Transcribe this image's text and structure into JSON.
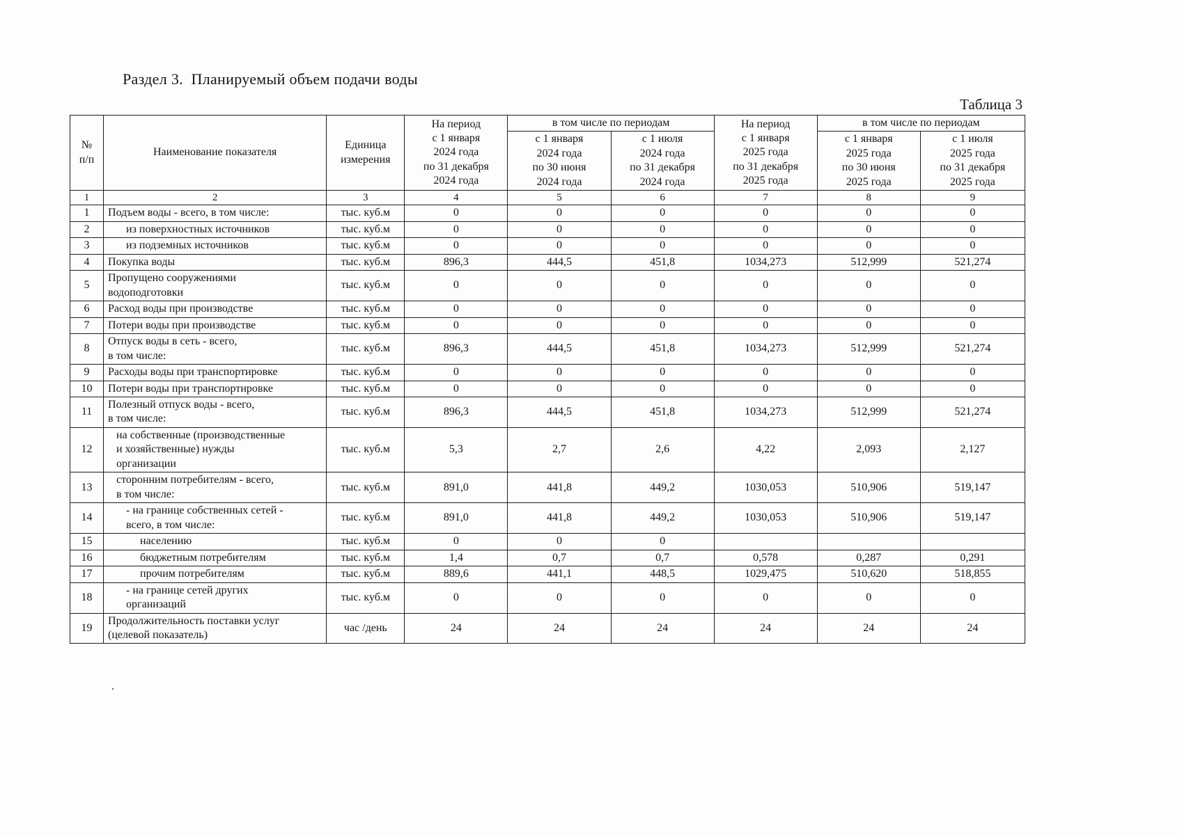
{
  "document": {
    "section_title": "Раздел 3.  Планируемый объем подачи воды",
    "table_label": "Таблица 3",
    "stray_mark": "."
  },
  "table": {
    "header": {
      "num": "№\nп/п",
      "indicator": "Наименование показателя",
      "unit": "Единица\nизмерения",
      "period_2024": "На период\nс 1 января\n2024 года\nпо 31 декабря\n2024 года",
      "including_2024": "в том числе по периодам",
      "h1_2024": "с 1 января\n2024 года\nпо 30 июня\n2024 года",
      "h2_2024": "с 1 июля\n2024 года\nпо 31 декабря\n2024 года",
      "period_2025": "На период\nс 1 января\n2025 года\nпо 31 декабря\n2025 года",
      "including_2025": "в том числе по периодам",
      "h1_2025": "с 1 января\n2025 года\nпо 30 июня\n2025 года",
      "h2_2025": "с 1 июля\n2025 года\nпо 31 декабря\n2025 года"
    },
    "column_numbers": [
      "1",
      "2",
      "3",
      "4",
      "5",
      "6",
      "7",
      "8",
      "9"
    ],
    "rows": [
      {
        "num": "1",
        "name": "Подъем воды - всего, в том числе:",
        "unit": "тыс. куб.м",
        "indent": 0,
        "values": [
          "0",
          "0",
          "0",
          "0",
          "0",
          "0"
        ]
      },
      {
        "num": "2",
        "name": "из поверхностных источников",
        "unit": "тыс. куб.м",
        "indent": 2,
        "values": [
          "0",
          "0",
          "0",
          "0",
          "0",
          "0"
        ]
      },
      {
        "num": "3",
        "name": "из подземных источников",
        "unit": "тыс. куб.м",
        "indent": 2,
        "values": [
          "0",
          "0",
          "0",
          "0",
          "0",
          "0"
        ]
      },
      {
        "num": "4",
        "name": "Покупка воды",
        "unit": "тыс. куб.м",
        "indent": 0,
        "values": [
          "896,3",
          "444,5",
          "451,8",
          "1034,273",
          "512,999",
          "521,274"
        ]
      },
      {
        "num": "5",
        "name": "Пропущено сооружениями\nводоподготовки",
        "unit": "тыс. куб.м",
        "indent": 0,
        "values": [
          "0",
          "0",
          "0",
          "0",
          "0",
          "0"
        ]
      },
      {
        "num": "6",
        "name": "Расход воды при производстве",
        "unit": "тыс. куб.м",
        "indent": 0,
        "values": [
          "0",
          "0",
          "0",
          "0",
          "0",
          "0"
        ]
      },
      {
        "num": "7",
        "name": "Потери воды при производстве",
        "unit": "тыс. куб.м",
        "indent": 0,
        "values": [
          "0",
          "0",
          "0",
          "0",
          "0",
          "0"
        ]
      },
      {
        "num": "8",
        "name": "Отпуск воды в сеть - всего,\nв том числе:",
        "unit": "тыс. куб.м",
        "indent": 0,
        "values": [
          "896,3",
          "444,5",
          "451,8",
          "1034,273",
          "512,999",
          "521,274"
        ]
      },
      {
        "num": "9",
        "name": "Расходы воды при транспортировке",
        "unit": "тыс. куб.м",
        "indent": 0,
        "values": [
          "0",
          "0",
          "0",
          "0",
          "0",
          "0"
        ]
      },
      {
        "num": "10",
        "name": "Потери воды при транспортировке",
        "unit": "тыс. куб.м",
        "indent": 0,
        "values": [
          "0",
          "0",
          "0",
          "0",
          "0",
          "0"
        ]
      },
      {
        "num": "11",
        "name": "Полезный отпуск воды - всего,\nв том числе:",
        "unit": "тыс. куб.м",
        "indent": 0,
        "values": [
          "896,3",
          "444,5",
          "451,8",
          "1034,273",
          "512,999",
          "521,274"
        ]
      },
      {
        "num": "12",
        "name": "на собственные (производственные\nи хозяйственные) нужды\nорганизации",
        "unit": "тыс. куб.м",
        "indent": 1,
        "values": [
          "5,3",
          "2,7",
          "2,6",
          "4,22",
          "2,093",
          "2,127"
        ]
      },
      {
        "num": "13",
        "name": "сторонним потребителям - всего,\nв том числе:",
        "unit": "тыс. куб.м",
        "indent": 1,
        "values": [
          "891,0",
          "441,8",
          "449,2",
          "1030,053",
          "510,906",
          "519,147"
        ]
      },
      {
        "num": "14",
        "name": "- на границе собственных сетей -\nвсего, в том числе:",
        "unit": "тыс. куб.м",
        "indent": 2,
        "values": [
          "891,0",
          "441,8",
          "449,2",
          "1030,053",
          "510,906",
          "519,147"
        ]
      },
      {
        "num": "15",
        "name": "населению",
        "unit": "тыс. куб.м",
        "indent": 3,
        "values": [
          "0",
          "0",
          "0",
          "",
          "",
          ""
        ]
      },
      {
        "num": "16",
        "name": "бюджетным потребителям",
        "unit": "тыс. куб.м",
        "indent": 3,
        "values": [
          "1,4",
          "0,7",
          "0,7",
          "0,578",
          "0,287",
          "0,291"
        ]
      },
      {
        "num": "17",
        "name": "прочим потребителям",
        "unit": "тыс. куб.м",
        "indent": 3,
        "values": [
          "889,6",
          "441,1",
          "448,5",
          "1029,475",
          "510,620",
          "518,855"
        ]
      },
      {
        "num": "18",
        "name": "- на границе сетей других\nорганизаций",
        "unit": "тыс. куб.м",
        "indent": 2,
        "values": [
          "0",
          "0",
          "0",
          "0",
          "0",
          "0"
        ]
      },
      {
        "num": "19",
        "name": "Продолжительность поставки услуг\n(целевой показатель)",
        "unit": "час /день",
        "indent": 0,
        "values": [
          "24",
          "24",
          "24",
          "24",
          "24",
          "24"
        ]
      }
    ]
  }
}
